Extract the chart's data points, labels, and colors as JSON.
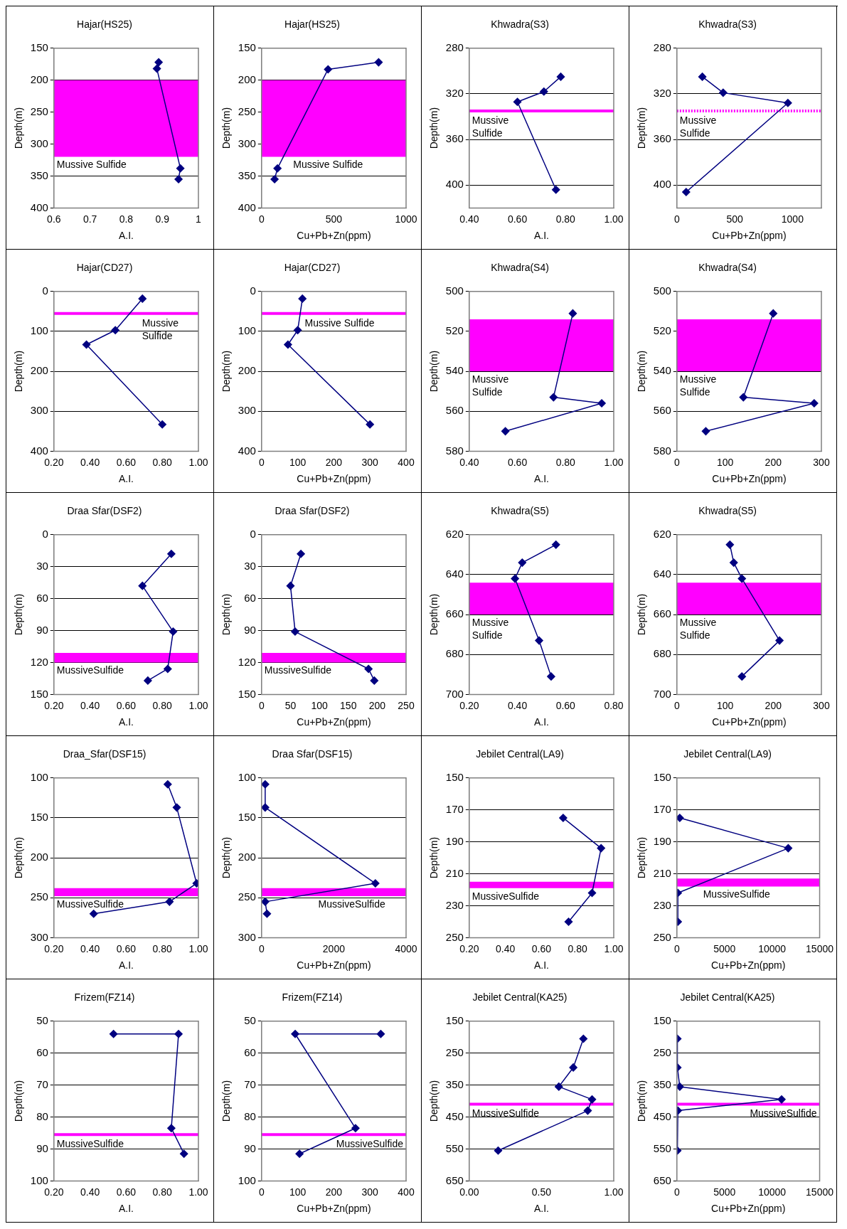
{
  "chart_data": [
    {
      "type": "line",
      "title": "Hajar(HS25)",
      "xlabel": "A.I.",
      "ylabel": "Depth(m)",
      "xlim": [
        0.6,
        1
      ],
      "xticks": [
        0.6,
        0.7,
        0.8,
        0.9,
        1
      ],
      "ylim": [
        400,
        150
      ],
      "yticks": [
        150,
        200,
        250,
        300,
        350,
        400
      ],
      "grid": "y",
      "marker": "diamond",
      "series": [
        {
          "color": "#000080",
          "x": [
            0.89,
            0.885,
            0.95,
            0.945
          ],
          "values": [
            172,
            182,
            338,
            355
          ]
        }
      ],
      "bands": [
        {
          "axis": "y",
          "from": 200,
          "to": 320,
          "color": "#ff00ff",
          "label": "Mussive Sulfide"
        }
      ]
    },
    {
      "type": "line",
      "title": "Hajar(HS25)",
      "xlabel": "Cu+Pb+Zn(ppm)",
      "ylabel": "Depth(m)",
      "xlim": [
        0,
        1000
      ],
      "xticks": [
        0,
        500,
        1000
      ],
      "ylim": [
        400,
        150
      ],
      "yticks": [
        150,
        200,
        250,
        300,
        350,
        400
      ],
      "grid": "y",
      "marker": "diamond",
      "series": [
        {
          "color": "#000080",
          "x": [
            810,
            460,
            110,
            90
          ],
          "values": [
            172,
            183,
            338,
            355
          ]
        }
      ],
      "bands": [
        {
          "axis": "y",
          "from": 200,
          "to": 320,
          "color": "#ff00ff",
          "label": "Mussive Sulfide"
        }
      ]
    },
    {
      "type": "line",
      "title": "Khwadra(S3)",
      "xlabel": "A.I.",
      "ylabel": "Depth(m)",
      "xlim": [
        0.4,
        1.0
      ],
      "xticks": [
        {
          "value": 0.4,
          "label": "0.40"
        },
        {
          "value": 0.6,
          "label": "0.60"
        },
        {
          "value": 0.8,
          "label": "0.80"
        },
        {
          "value": 1.0,
          "label": "1.00"
        }
      ],
      "ylim": [
        420,
        280
      ],
      "yticks": [
        280,
        320,
        360,
        400
      ],
      "grid": "y",
      "marker": "diamond",
      "series": [
        {
          "color": "#000080",
          "x": [
            0.78,
            0.71,
            0.6,
            0.76
          ],
          "values": [
            305,
            318,
            327,
            404
          ]
        }
      ],
      "ref_lines": [
        {
          "axis": "y",
          "value": 335,
          "color": "#ff00ff",
          "label": "Mussive\nSulfide"
        }
      ]
    },
    {
      "type": "line",
      "title": "Khwadra(S3)",
      "xlabel": "Cu+Pb+Zn(ppm)",
      "ylabel": "Depth(m)",
      "xlim": [
        0,
        1250
      ],
      "xticks": [
        0,
        500,
        1000
      ],
      "ylim": [
        420,
        280
      ],
      "yticks": [
        280,
        320,
        360,
        400
      ],
      "grid": "y",
      "marker": "diamond",
      "series": [
        {
          "color": "#000080",
          "x": [
            220,
            400,
            960,
            80
          ],
          "values": [
            305,
            319,
            328,
            406
          ]
        }
      ],
      "ref_lines": [
        {
          "axis": "y",
          "value": 335,
          "color": "#ff00ff",
          "line_style": "dotted",
          "label": "Mussive\nSulfide"
        }
      ]
    },
    {
      "type": "line",
      "title": "Hajar(CD27)",
      "xlabel": "A.I.",
      "ylabel": "Depth(m)",
      "xlim": [
        0.2,
        1.0
      ],
      "xticks": [
        {
          "value": 0.2,
          "label": "0.20"
        },
        {
          "value": 0.4,
          "label": "0.40"
        },
        {
          "value": 0.6,
          "label": "0.60"
        },
        {
          "value": 0.8,
          "label": "0.80"
        },
        {
          "value": 1.0,
          "label": "1.00"
        }
      ],
      "ylim": [
        400,
        0
      ],
      "yticks": [
        0,
        100,
        200,
        300,
        400
      ],
      "grid": "y",
      "marker": "diamond",
      "series": [
        {
          "color": "#000080",
          "x": [
            0.69,
            0.54,
            0.38,
            0.8
          ],
          "values": [
            18,
            97,
            133,
            333
          ]
        }
      ],
      "ref_lines": [
        {
          "axis": "y",
          "value": 55,
          "color": "#ff00ff",
          "label": "Mussive\nSulfide"
        }
      ]
    },
    {
      "type": "line",
      "title": "Hajar(CD27)",
      "xlabel": "Cu+Pb+Zn(ppm)",
      "ylabel": "Depth(m)",
      "xlim": [
        0,
        400
      ],
      "xticks": [
        0,
        100,
        200,
        300,
        400
      ],
      "ylim": [
        400,
        0
      ],
      "yticks": [
        0,
        100,
        200,
        300,
        400
      ],
      "grid": "y",
      "marker": "diamond",
      "series": [
        {
          "color": "#000080",
          "x": [
            113,
            100,
            73,
            300
          ],
          "values": [
            18,
            97,
            133,
            333
          ]
        }
      ],
      "ref_lines": [
        {
          "axis": "y",
          "value": 55,
          "color": "#ff00ff",
          "label": "Mussive Sulfide"
        }
      ]
    },
    {
      "type": "line",
      "title": "Khwadra(S4)",
      "xlabel": "A.I.",
      "ylabel": "Depth(m)",
      "xlim": [
        0.4,
        1.0
      ],
      "xticks": [
        {
          "value": 0.4,
          "label": "0.40"
        },
        {
          "value": 0.6,
          "label": "0.60"
        },
        {
          "value": 0.8,
          "label": "0.80"
        },
        {
          "value": 1.0,
          "label": "1.00"
        }
      ],
      "ylim": [
        580,
        500
      ],
      "yticks": [
        500,
        520,
        540,
        560,
        580
      ],
      "grid": "y",
      "marker": "diamond",
      "series": [
        {
          "color": "#000080",
          "x": [
            0.83,
            0.75,
            0.95,
            0.55
          ],
          "values": [
            511,
            553,
            556,
            570
          ]
        }
      ],
      "bands": [
        {
          "axis": "y",
          "from": 514,
          "to": 540,
          "color": "#ff00ff",
          "label": "Mussive\nSulfide"
        }
      ]
    },
    {
      "type": "line",
      "title": "Khwadra(S4)",
      "xlabel": "Cu+Pb+Zn(ppm)",
      "ylabel": "Depth(m)",
      "xlim": [
        0,
        300
      ],
      "xticks": [
        0,
        100,
        200,
        300
      ],
      "ylim": [
        580,
        500
      ],
      "yticks": [
        500,
        520,
        540,
        560,
        580
      ],
      "grid": "y",
      "marker": "diamond",
      "series": [
        {
          "color": "#000080",
          "x": [
            200,
            138,
            285,
            60
          ],
          "values": [
            511,
            553,
            556,
            570
          ]
        }
      ],
      "bands": [
        {
          "axis": "y",
          "from": 514,
          "to": 540,
          "color": "#ff00ff",
          "label": "Mussive\nSulfide"
        }
      ]
    },
    {
      "type": "line",
      "title": "Draa Sfar(DSF2)",
      "xlabel": "A.I.",
      "ylabel": "Depth(m)",
      "xlim": [
        0.2,
        1.0
      ],
      "xticks": [
        {
          "value": 0.2,
          "label": "0.20"
        },
        {
          "value": 0.4,
          "label": "0.40"
        },
        {
          "value": 0.6,
          "label": "0.60"
        },
        {
          "value": 0.8,
          "label": "0.80"
        },
        {
          "value": 1.0,
          "label": "1.00"
        }
      ],
      "ylim": [
        150,
        0
      ],
      "yticks": [
        0,
        30,
        60,
        90,
        120,
        150
      ],
      "grid": "y",
      "marker": "diamond",
      "series": [
        {
          "color": "#000080",
          "x": [
            0.85,
            0.69,
            0.86,
            0.83,
            0.72
          ],
          "values": [
            18,
            48,
            91,
            126,
            137
          ]
        }
      ],
      "bands": [
        {
          "axis": "y",
          "from": 111,
          "to": 120,
          "color": "#ff00ff",
          "label": "MussiveSulfide"
        }
      ]
    },
    {
      "type": "line",
      "title": "Draa Sfar(DSF2)",
      "xlabel": "Cu+Pb+Zn(ppm)",
      "ylabel": "Depth(m)",
      "xlim": [
        0,
        250
      ],
      "xticks": [
        0,
        50,
        100,
        150,
        200,
        250
      ],
      "ylim": [
        150,
        0
      ],
      "yticks": [
        0,
        30,
        60,
        90,
        120,
        150
      ],
      "grid": "y",
      "marker": "diamond",
      "series": [
        {
          "color": "#000080",
          "x": [
            68,
            50,
            58,
            185,
            195
          ],
          "values": [
            18,
            48,
            91,
            126,
            137
          ]
        }
      ],
      "bands": [
        {
          "axis": "y",
          "from": 111,
          "to": 120,
          "color": "#ff00ff",
          "label": "MussiveSulfide"
        }
      ]
    },
    {
      "type": "line",
      "title": "Khwadra(S5)",
      "xlabel": "A.I.",
      "ylabel": "Depth(m)",
      "xlim": [
        0.2,
        0.8
      ],
      "xticks": [
        {
          "value": 0.2,
          "label": "0.20"
        },
        {
          "value": 0.4,
          "label": "0.40"
        },
        {
          "value": 0.6,
          "label": "0.60"
        },
        {
          "value": 0.8,
          "label": "0.80"
        }
      ],
      "ylim": [
        700,
        620
      ],
      "yticks": [
        620,
        640,
        660,
        680,
        700
      ],
      "grid": "y",
      "marker": "diamond",
      "series": [
        {
          "color": "#000080",
          "x": [
            0.56,
            0.42,
            0.39,
            0.49,
            0.54
          ],
          "values": [
            625,
            634,
            642,
            673,
            691
          ]
        }
      ],
      "bands": [
        {
          "axis": "y",
          "from": 644,
          "to": 660,
          "color": "#ff00ff",
          "label": "Mussive\nSulfide"
        }
      ]
    },
    {
      "type": "line",
      "title": "Khwadra(S5)",
      "xlabel": "Cu+Pb+Zn(ppm)",
      "ylabel": "Depth(m)",
      "xlim": [
        0,
        300
      ],
      "xticks": [
        0,
        100,
        200,
        300
      ],
      "ylim": [
        700,
        620
      ],
      "yticks": [
        620,
        640,
        660,
        680,
        700
      ],
      "grid": "y",
      "marker": "diamond",
      "series": [
        {
          "color": "#000080",
          "x": [
            110,
            118,
            135,
            213,
            135
          ],
          "values": [
            625,
            634,
            642,
            673,
            691
          ]
        }
      ],
      "bands": [
        {
          "axis": "y",
          "from": 644,
          "to": 660,
          "color": "#ff00ff",
          "label": "Mussive\nSulfide"
        }
      ]
    },
    {
      "type": "line",
      "title": "Draa_Sfar(DSF15)",
      "xlabel": "A.I.",
      "ylabel": "Depth(m)",
      "xlim": [
        0.2,
        1.0
      ],
      "xticks": [
        {
          "value": 0.2,
          "label": "0.20"
        },
        {
          "value": 0.4,
          "label": "0.40"
        },
        {
          "value": 0.6,
          "label": "0.60"
        },
        {
          "value": 0.8,
          "label": "0.80"
        },
        {
          "value": 1.0,
          "label": "1.00"
        }
      ],
      "ylim": [
        300,
        100
      ],
      "yticks": [
        100,
        150,
        200,
        250,
        300
      ],
      "grid": "y",
      "marker": "diamond",
      "series": [
        {
          "color": "#000080",
          "x": [
            0.83,
            0.88,
            0.99,
            0.84,
            0.42
          ],
          "values": [
            108,
            137,
            232,
            255,
            270
          ]
        }
      ],
      "bands": [
        {
          "axis": "y",
          "from": 238,
          "to": 248,
          "color": "#ff00ff",
          "label": "MussiveSulfide"
        }
      ]
    },
    {
      "type": "line",
      "title": "Draa Sfar(DSF15)",
      "xlabel": "Cu+Pb+Zn(ppm)",
      "ylabel": "Depth(m)",
      "xlim": [
        0,
        4000
      ],
      "xticks": [
        0,
        2000,
        4000
      ],
      "ylim": [
        300,
        100
      ],
      "yticks": [
        100,
        150,
        200,
        250,
        300
      ],
      "grid": "y",
      "marker": "diamond",
      "series": [
        {
          "color": "#000080",
          "x": [
            100,
            100,
            3150,
            100,
            150
          ],
          "values": [
            108,
            137,
            232,
            255,
            270
          ]
        }
      ],
      "bands": [
        {
          "axis": "y",
          "from": 238,
          "to": 248,
          "color": "#ff00ff",
          "label": "MussiveSulfide"
        }
      ]
    },
    {
      "type": "line",
      "title": "Jebilet Central(LA9)",
      "xlabel": "A.I.",
      "ylabel": "Depth(m)",
      "xlim": [
        0.2,
        1.0
      ],
      "xticks": [
        {
          "value": 0.2,
          "label": "0.20"
        },
        {
          "value": 0.4,
          "label": "0.40"
        },
        {
          "value": 0.6,
          "label": "0.60"
        },
        {
          "value": 0.8,
          "label": "0.80"
        },
        {
          "value": 1.0,
          "label": "1.00"
        }
      ],
      "ylim": [
        250,
        150
      ],
      "yticks": [
        150,
        170,
        190,
        210,
        230,
        250
      ],
      "grid": "y",
      "marker": "diamond",
      "series": [
        {
          "color": "#000080",
          "x": [
            0.72,
            0.93,
            0.88,
            0.75
          ],
          "values": [
            175,
            194,
            222,
            240
          ]
        }
      ],
      "bands": [
        {
          "axis": "y",
          "from": 215,
          "to": 219,
          "color": "#ff00ff",
          "label": "MussiveSulfide"
        }
      ]
    },
    {
      "type": "line",
      "title": "Jebilet Central(LA9)",
      "xlabel": "Cu+Pb+Zn(ppm)",
      "ylabel": "Depth(m)",
      "xlim": [
        0,
        15000
      ],
      "xticks": [
        0,
        5000,
        10000,
        15000
      ],
      "ylim": [
        250,
        150
      ],
      "yticks": [
        150,
        170,
        190,
        210,
        230,
        250
      ],
      "grid": "y",
      "marker": "diamond",
      "series": [
        {
          "color": "#000080",
          "x": [
            300,
            11700,
            100,
            100
          ],
          "values": [
            175,
            194,
            222,
            240
          ]
        }
      ],
      "bands": [
        {
          "axis": "y",
          "from": 213,
          "to": 218,
          "color": "#ff00ff",
          "label": "MussiveSulfide"
        }
      ]
    },
    {
      "type": "line",
      "title": "Frizem(FZ14)",
      "xlabel": "A.I.",
      "ylabel": "Depth(m)",
      "xlim": [
        0.2,
        1.0
      ],
      "xticks": [
        {
          "value": 0.2,
          "label": "0.20"
        },
        {
          "value": 0.4,
          "label": "0.40"
        },
        {
          "value": 0.6,
          "label": "0.60"
        },
        {
          "value": 0.8,
          "label": "0.80"
        },
        {
          "value": 1.0,
          "label": "1.00"
        }
      ],
      "ylim": [
        100,
        50
      ],
      "yticks": [
        50,
        60,
        70,
        80,
        90,
        100
      ],
      "grid": "y",
      "marker": "diamond",
      "series": [
        {
          "color": "#000080",
          "x": [
            0.53,
            0.89,
            0.85,
            0.92
          ],
          "values": [
            54,
            54,
            83.5,
            91.5
          ]
        }
      ],
      "ref_lines": [
        {
          "axis": "y",
          "value": 85.5,
          "color": "#ff00ff",
          "label": "MussiveSulfide"
        }
      ]
    },
    {
      "type": "line",
      "title": "Frizem(FZ14)",
      "xlabel": "Cu+Pb+Zn(ppm)",
      "ylabel": "Depth(m)",
      "xlim": [
        0,
        400
      ],
      "xticks": [
        0,
        100,
        200,
        300,
        400
      ],
      "ylim": [
        100,
        50
      ],
      "yticks": [
        50,
        60,
        70,
        80,
        90,
        100
      ],
      "grid": "y",
      "marker": "diamond",
      "series": [
        {
          "color": "#000080",
          "x": [
            330,
            93,
            260,
            105
          ],
          "values": [
            54,
            54,
            83.5,
            91.5
          ]
        }
      ],
      "ref_lines": [
        {
          "axis": "y",
          "value": 85.5,
          "color": "#ff00ff",
          "label": "MussiveSulfide"
        }
      ]
    },
    {
      "type": "line",
      "title": "Jebilet Central(KA25)",
      "xlabel": "A.I.",
      "ylabel": "Depth(m)",
      "xlim": [
        0,
        1.0
      ],
      "xticks": [
        {
          "value": 0,
          "label": "0.00"
        },
        {
          "value": 0.5,
          "label": "0.50"
        },
        {
          "value": 1.0,
          "label": "1.00"
        }
      ],
      "ylim": [
        650,
        150
      ],
      "yticks": [
        150,
        250,
        350,
        450,
        550,
        650
      ],
      "grid": "y",
      "marker": "diamond",
      "series": [
        {
          "color": "#000080",
          "x": [
            0.79,
            0.72,
            0.62,
            0.85,
            0.82,
            0.2
          ],
          "values": [
            205,
            295,
            355,
            395,
            430,
            555
          ]
        }
      ],
      "ref_lines": [
        {
          "axis": "y",
          "value": 410,
          "color": "#ff00ff",
          "label": "MussiveSulfide"
        }
      ]
    },
    {
      "type": "line",
      "title": "Jebilet Central(KA25)",
      "xlabel": "Cu+Pb+Zn(ppm)",
      "ylabel": "Depth(m)",
      "xlim": [
        0,
        15000
      ],
      "xticks": [
        0,
        5000,
        10000,
        15000
      ],
      "ylim": [
        650,
        150
      ],
      "yticks": [
        150,
        250,
        350,
        450,
        550,
        650
      ],
      "grid": "y",
      "marker": "diamond",
      "series": [
        {
          "color": "#000080",
          "x": [
            50,
            50,
            300,
            11000,
            100,
            50
          ],
          "values": [
            205,
            295,
            355,
            395,
            430,
            555
          ]
        }
      ],
      "ref_lines": [
        {
          "axis": "y",
          "value": 410,
          "color": "#ff00ff",
          "label": "MussiveSulfide"
        }
      ]
    }
  ]
}
